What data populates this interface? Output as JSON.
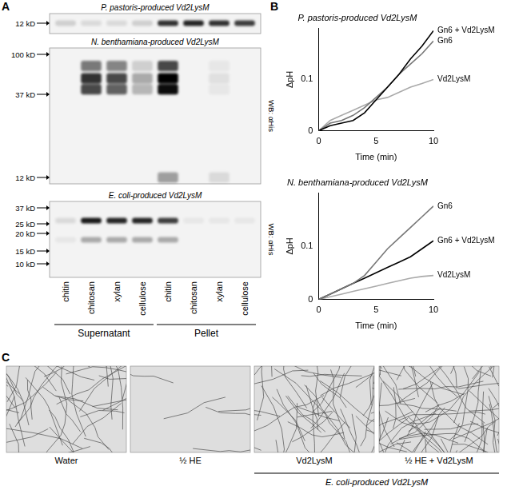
{
  "panel_labels": [
    "A",
    "B",
    "C"
  ],
  "panel_a": {
    "blots": [
      {
        "title": "P. pastoris-produced Vd2LysM",
        "markers": [
          {
            "kD": 12,
            "label": "12 kD"
          }
        ],
        "bands": [
          {
            "kD": 12,
            "intensity": [
              0.15,
              0.1,
              0.1,
              0.15,
              0.8,
              0.85,
              0.8,
              0.75
            ]
          }
        ]
      },
      {
        "title": "N. benthamiana-produced Vd2LysM",
        "markers": [
          {
            "kD": 100,
            "label": "100 kD"
          },
          {
            "kD": 37,
            "label": "37 kD"
          },
          {
            "kD": 12,
            "label": "12 kD"
          }
        ],
        "antibody": "WB: αHis",
        "bands": [
          {
            "kD": 75,
            "intensity": [
              0,
              0.5,
              0.45,
              0.15,
              0.7,
              0,
              0.05,
              0
            ]
          },
          {
            "kD": 55,
            "intensity": [
              0,
              0.8,
              0.7,
              0.3,
              1.0,
              0,
              0.08,
              0
            ]
          },
          {
            "kD": 42,
            "intensity": [
              0,
              0.7,
              0.6,
              0.25,
              0.95,
              0,
              0.05,
              0
            ]
          },
          {
            "kD": 12,
            "intensity": [
              0,
              0,
              0,
              0,
              0.35,
              0,
              0.1,
              0
            ]
          }
        ]
      },
      {
        "title": "E. coli-produced Vd2LysM",
        "markers": [
          {
            "kD": 37,
            "label": "37 kD"
          },
          {
            "kD": 25,
            "label": "25 kD"
          },
          {
            "kD": 20,
            "label": "20 kD"
          },
          {
            "kD": 15,
            "label": "15 kD"
          },
          {
            "kD": 10,
            "label": "10 kD"
          }
        ],
        "antibody": "WB: αHis",
        "bands": [
          {
            "kD": 27,
            "intensity": [
              0.1,
              0.9,
              0.85,
              0.85,
              0.75,
              0.05,
              0.05,
              0.05
            ]
          },
          {
            "kD": 18,
            "intensity": [
              0.05,
              0.3,
              0.3,
              0.3,
              0.3,
              0,
              0,
              0
            ]
          }
        ]
      }
    ],
    "lanes": [
      "chitin",
      "chitosan",
      "xylan",
      "cellulose",
      "chitin",
      "chitosan",
      "xylan",
      "cellulose"
    ],
    "groups": [
      {
        "label": "Supernatant",
        "lanes": 4
      },
      {
        "label": "Pellet",
        "lanes": 4
      }
    ]
  },
  "chart_data": [
    {
      "type": "line",
      "title": "P. pastoris-produced Vd2LysM",
      "x_label": "Time (min)",
      "y_label": "ΔpH",
      "x": [
        0,
        1,
        2,
        3,
        4,
        5,
        6,
        7,
        8,
        9,
        10
      ],
      "series": [
        {
          "name": "Gn6 + Vd2LysM",
          "color": "#000000",
          "values": [
            0,
            0.01,
            0.015,
            0.02,
            0.035,
            0.06,
            0.085,
            0.11,
            0.14,
            0.165,
            0.195
          ]
        },
        {
          "name": "Gn6",
          "color": "#777777",
          "values": [
            0,
            0.015,
            0.02,
            0.03,
            0.045,
            0.065,
            0.085,
            0.11,
            0.13,
            0.15,
            0.175
          ]
        },
        {
          "name": "Vd2LysM",
          "color": "#aaaaaa",
          "values": [
            0,
            0.02,
            0.03,
            0.04,
            0.05,
            0.06,
            0.065,
            0.075,
            0.085,
            0.092,
            0.1
          ]
        }
      ],
      "xlim": [
        0,
        10
      ],
      "xticks": [
        0,
        5,
        10
      ],
      "ylim": [
        0,
        0.2
      ],
      "yticks": [
        0,
        0.1
      ],
      "grid": false
    },
    {
      "type": "line",
      "title": "N. benthamiana-produced Vd2LysM",
      "x_label": "Time (min)",
      "y_label": "ΔpH",
      "x": [
        0,
        1,
        2,
        3,
        4,
        5,
        6,
        7,
        8,
        9,
        10
      ],
      "series": [
        {
          "name": "Gn6",
          "color": "#777777",
          "values": [
            0,
            0.01,
            0.02,
            0.03,
            0.045,
            0.07,
            0.095,
            0.115,
            0.135,
            0.155,
            0.175
          ]
        },
        {
          "name": "Gn6 + Vd2LysM",
          "color": "#000000",
          "values": [
            0,
            0.01,
            0.02,
            0.03,
            0.04,
            0.05,
            0.06,
            0.07,
            0.08,
            0.095,
            0.11
          ]
        },
        {
          "name": "Vd2LysM",
          "color": "#aaaaaa",
          "values": [
            0,
            0.005,
            0.01,
            0.015,
            0.02,
            0.025,
            0.03,
            0.035,
            0.04,
            0.043,
            0.045
          ]
        }
      ],
      "xlim": [
        0,
        10
      ],
      "xticks": [
        0,
        5,
        10
      ],
      "ylim": [
        0,
        0.2
      ],
      "yticks": [
        0,
        0.1
      ],
      "grid": false
    }
  ],
  "panel_c": {
    "images": [
      {
        "caption": "Water",
        "hyphal_density": 1.0
      },
      {
        "caption": "½ HE",
        "hyphal_density": 0.12
      },
      {
        "caption": "Vd2LysM",
        "hyphal_density": 1.1
      },
      {
        "caption": "½ HE + Vd2LysM",
        "hyphal_density": 1.7
      }
    ],
    "group": {
      "label": "E. coli-produced Vd2LysM",
      "images": [
        2,
        3
      ]
    }
  }
}
